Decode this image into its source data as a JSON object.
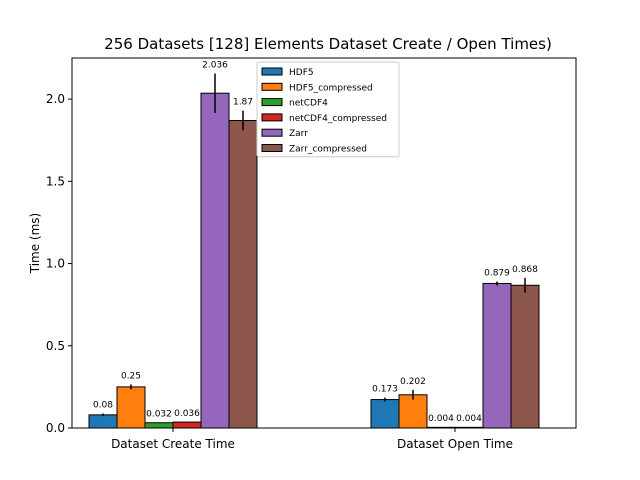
{
  "chart_data": {
    "type": "bar",
    "title": "256 Datasets [128] Elements Dataset Create / Open Times)",
    "xlabel": "",
    "ylabel": "Time (ms)",
    "ylim": [
      0,
      2.25
    ],
    "yticks": [
      0.0,
      0.5,
      1.0,
      1.5,
      2.0
    ],
    "ytick_labels": [
      "0.0",
      "0.5",
      "1.0",
      "1.5",
      "2.0"
    ],
    "categories": [
      "Dataset Create Time",
      "Dataset Open Time"
    ],
    "grid": false,
    "legend_position": "top-center",
    "series": [
      {
        "name": "HDF5",
        "color": "#1f77b4",
        "values": [
          0.08,
          0.173
        ],
        "labels": [
          "0.08",
          "0.173"
        ],
        "errors": [
          0.008,
          0.012
        ]
      },
      {
        "name": "HDF5_compressed",
        "color": "#ff7f0e",
        "values": [
          0.25,
          0.202
        ],
        "labels": [
          "0.25",
          "0.202"
        ],
        "errors": [
          0.015,
          0.03
        ]
      },
      {
        "name": "netCDF4",
        "color": "#2ca02c",
        "values": [
          0.032,
          0.004
        ],
        "labels": [
          "0.032",
          "0.004"
        ],
        "errors": [
          0.002,
          0.001
        ]
      },
      {
        "name": "netCDF4_compressed",
        "color": "#d62728",
        "values": [
          0.036,
          0.004
        ],
        "labels": [
          "0.036",
          "0.004"
        ],
        "errors": [
          0.002,
          0.001
        ]
      },
      {
        "name": "Zarr",
        "color": "#9467bd",
        "values": [
          2.036,
          0.879
        ],
        "labels": [
          "2.036",
          "0.879"
        ],
        "errors": [
          0.12,
          0.012
        ]
      },
      {
        "name": "Zarr_compressed",
        "color": "#8c564b",
        "values": [
          1.87,
          0.868
        ],
        "labels": [
          "1.87",
          "0.868"
        ],
        "errors": [
          0.06,
          0.045
        ]
      }
    ]
  }
}
